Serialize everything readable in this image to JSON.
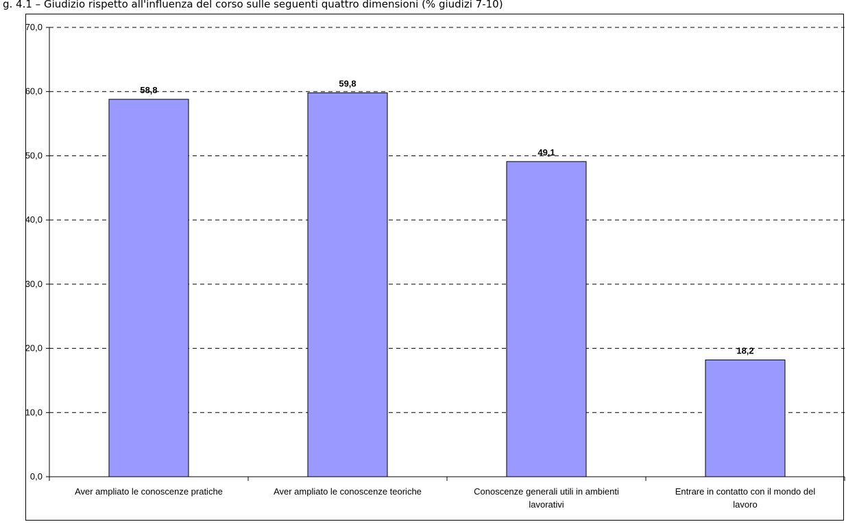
{
  "caption": "g. 4.1 – Giudizio rispetto all'influenza del corso sulle seguenti quattro dimensioni (% giudizi 7-10)",
  "chart_data": {
    "type": "bar",
    "categories": [
      [
        "Aver ampliato le conoscenze pratiche"
      ],
      [
        "Aver ampliato le conoscenze teoriche"
      ],
      [
        "Conoscenze generali utili in ambienti",
        "lavorativi"
      ],
      [
        "Entrare in contatto con il mondo del",
        "lavoro"
      ]
    ],
    "values": [
      58.8,
      59.8,
      49.1,
      18.2
    ],
    "value_labels": [
      "58,8",
      "59,8",
      "49,1",
      "18,2"
    ],
    "ylim": [
      0,
      70
    ],
    "yticks": [
      0,
      10,
      20,
      30,
      40,
      50,
      60,
      70
    ],
    "ytick_labels": [
      "0,0",
      "10,0",
      "20,0",
      "30,0",
      "40,0",
      "50,0",
      "60,0",
      "70,0"
    ],
    "grid": "dashed horizontal",
    "legend": "none",
    "colors": {
      "bar_fill": "#9999ff",
      "bar_stroke": "#000000",
      "grid": "#000000"
    }
  }
}
